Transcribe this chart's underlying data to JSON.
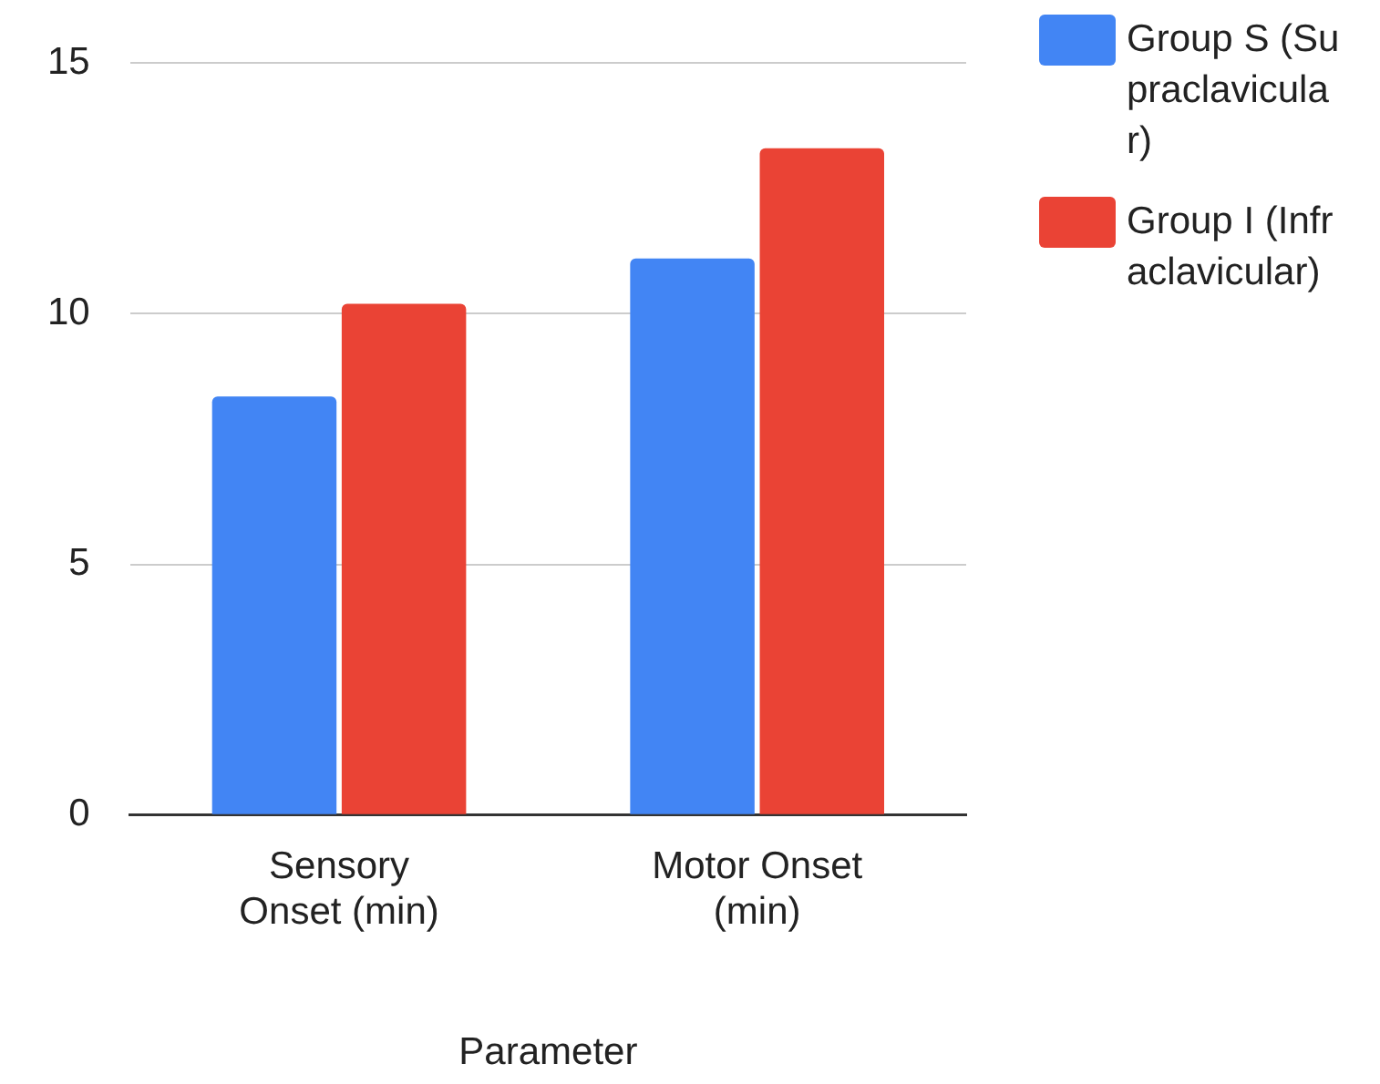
{
  "chart_data": {
    "type": "bar",
    "xlabel": "Parameter",
    "categories": [
      "Sensory Onset (min)",
      "Motor Onset (min)"
    ],
    "series": [
      {
        "name": "Group S (Supraclavicular)",
        "color": "#4285f4",
        "values": [
          8.35,
          11.1
        ]
      },
      {
        "name": "Group I (Infraclavicular)",
        "color": "#ea4335",
        "values": [
          10.2,
          13.3
        ]
      }
    ],
    "ylim": [
      0,
      15
    ],
    "yticks": [
      0,
      5,
      10,
      15
    ],
    "grid": "y",
    "legend": "right"
  }
}
